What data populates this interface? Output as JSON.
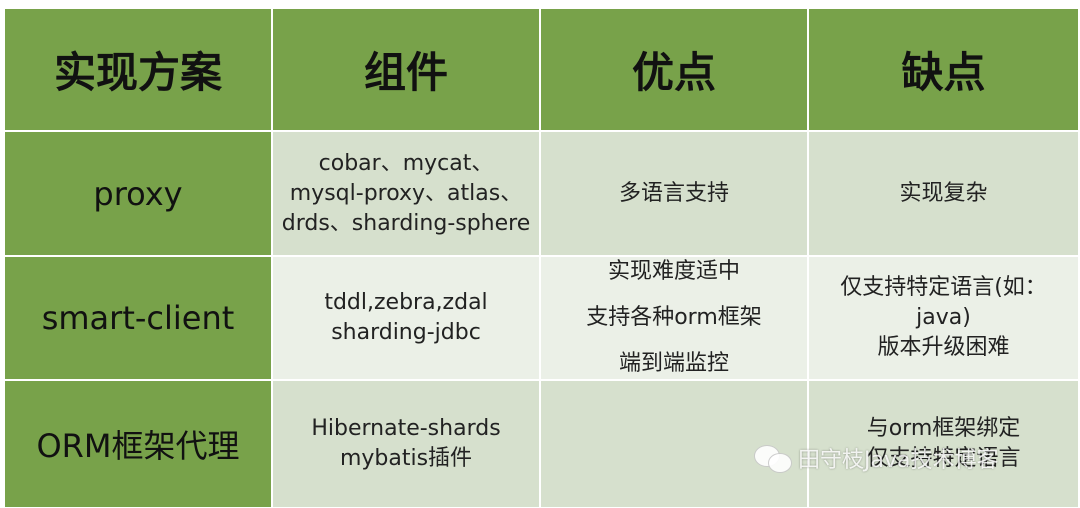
{
  "headers": [
    "实现方案",
    "组件",
    "优点",
    "缺点"
  ],
  "rows": [
    {
      "scheme": "proxy",
      "components": [
        "cobar、mycat、",
        "mysql-proxy、atlas、",
        "drds、sharding-sphere"
      ],
      "pros": [
        "多语言支持"
      ],
      "cons": [
        "实现复杂"
      ]
    },
    {
      "scheme": "smart-client",
      "components": [
        "tddl,zebra,zdal",
        "sharding-jdbc"
      ],
      "pros": [
        "实现难度适中",
        "支持各种orm框架",
        "端到端监控"
      ],
      "cons": [
        "仅支持特定语言(如：",
        "java)",
        "版本升级困难"
      ]
    },
    {
      "scheme": "ORM框架代理",
      "components": [
        "Hibernate-shards",
        "mybatis插件"
      ],
      "pros": [],
      "cons": [
        "与orm框架绑定",
        "仅支持特定语言"
      ]
    }
  ],
  "watermark": "田守枝Java技术博客",
  "colors": {
    "header_bg": "#78a24a",
    "row_light": "#d6e0cd",
    "row_lighter": "#ebf0e7"
  }
}
